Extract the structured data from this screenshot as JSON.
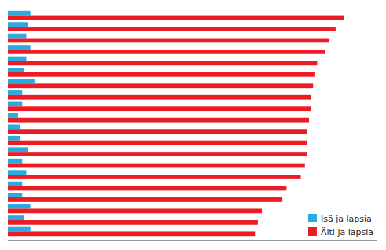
{
  "chart_data": {
    "type": "bar",
    "orientation": "horizontal",
    "categories": [
      null,
      null,
      null,
      null,
      null,
      null,
      null,
      null,
      null,
      null,
      null,
      null,
      null,
      null,
      null,
      null,
      null,
      null,
      null,
      null
    ],
    "series": [
      {
        "name": "Isä ja lapsia",
        "color": "#29ABE2",
        "values": [
          5.5,
          5.0,
          4.5,
          5.5,
          4.5,
          4.0,
          6.5,
          3.5,
          3.5,
          2.5,
          3.0,
          3.0,
          5.0,
          3.5,
          4.5,
          3.5,
          3.5,
          5.5,
          4.0,
          5.5
        ]
      },
      {
        "name": "Äiti ja lapsia",
        "color": "#ED1C24",
        "values": [
          82.0,
          80.0,
          78.5,
          77.5,
          75.5,
          75.0,
          74.5,
          74.0,
          74.0,
          73.5,
          73.0,
          73.0,
          73.0,
          72.5,
          71.5,
          68.0,
          67.0,
          62.0,
          61.0,
          60.5
        ]
      }
    ],
    "xlim": [
      0,
      90
    ],
    "xticks": [],
    "grid": false,
    "tick_labels": false,
    "legend": "lower right"
  }
}
